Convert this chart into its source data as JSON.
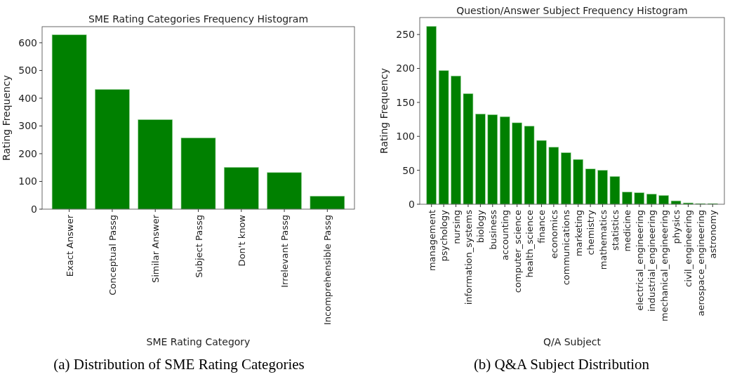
{
  "chart_data": [
    {
      "type": "bar",
      "title": "SME Rating Categories Frequency Histogram",
      "xlabel": "SME Rating Category",
      "ylabel": "Rating Frequency",
      "annotations": [
        "(a) Distribution of SME Rating Categories"
      ],
      "categories": [
        "Exact Answer",
        "Conceptual Passg",
        "Similar Answer",
        "Subject Passg",
        "Don't know",
        "Irrelevant Passg",
        "Incomprehensible Passg"
      ],
      "values": [
        629,
        432,
        323,
        257,
        151,
        132,
        47
      ],
      "color": "#008000",
      "ylim": [
        0,
        658
      ],
      "yticks": [
        0,
        100,
        200,
        300,
        400,
        500,
        600
      ],
      "grid": false
    },
    {
      "type": "bar",
      "title": "Question/Answer Subject Frequency Histogram",
      "xlabel": "Q/A Subject",
      "ylabel": "Rating Frequency",
      "annotations": [
        "(b) Q&A Subject Distribution"
      ],
      "categories": [
        "management",
        "psychology",
        "nursing",
        "information_systems",
        "biology",
        "business",
        "accounting",
        "computer_science",
        "health_science",
        "finance",
        "economics",
        "communications",
        "marketing",
        "chemistry",
        "mathematics",
        "statistics",
        "medicine",
        "electrical_engineering",
        "industrial_engineering",
        "mechanical_engineering",
        "physics",
        "civil_engineering",
        "aerospace_engineering",
        "astronomy"
      ],
      "values": [
        262,
        197,
        189,
        163,
        133,
        132,
        129,
        120,
        115,
        94,
        84,
        76,
        66,
        52,
        50,
        41,
        18,
        17,
        15,
        13,
        5,
        2,
        1,
        1
      ],
      "color": "#008000",
      "ylim": [
        0,
        275
      ],
      "yticks": [
        0,
        50,
        100,
        150,
        200,
        250
      ],
      "grid": false
    }
  ]
}
